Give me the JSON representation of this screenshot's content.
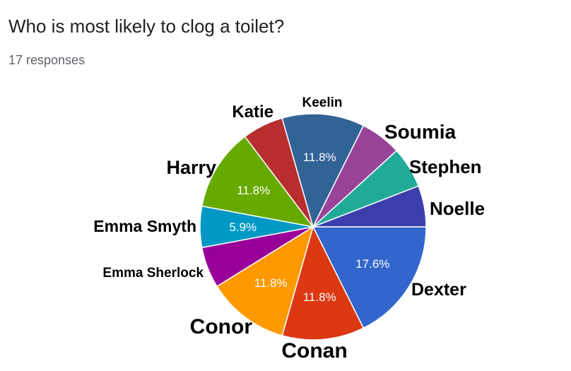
{
  "header": {
    "title": "Who is most likely to clog a toilet?",
    "responses": "17 responses"
  },
  "chart_data": {
    "type": "pie",
    "categories": [
      "Dexter",
      "Conan",
      "Conor",
      "Emma Sherlock",
      "Emma Smyth",
      "Harry",
      "Katie",
      "Keelin",
      "Soumia",
      "Stephen",
      "Noelle"
    ],
    "values": [
      3,
      2,
      2,
      1,
      1,
      2,
      1,
      2,
      1,
      1,
      1
    ],
    "percent_labels": [
      "17.6%",
      "11.8%",
      "11.8%",
      "",
      "5.9%",
      "11.8%",
      "",
      "11.8%",
      "",
      "",
      ""
    ],
    "colors": [
      "#3366cc",
      "#dc3912",
      "#ff9900",
      "#990099",
      "#0099c6",
      "#66aa00",
      "#b82e2e",
      "#316395",
      "#994499",
      "#22aa99",
      "#3b3eac"
    ],
    "title": "Who is most likely to clog a toilet?",
    "total_responses": 17
  }
}
